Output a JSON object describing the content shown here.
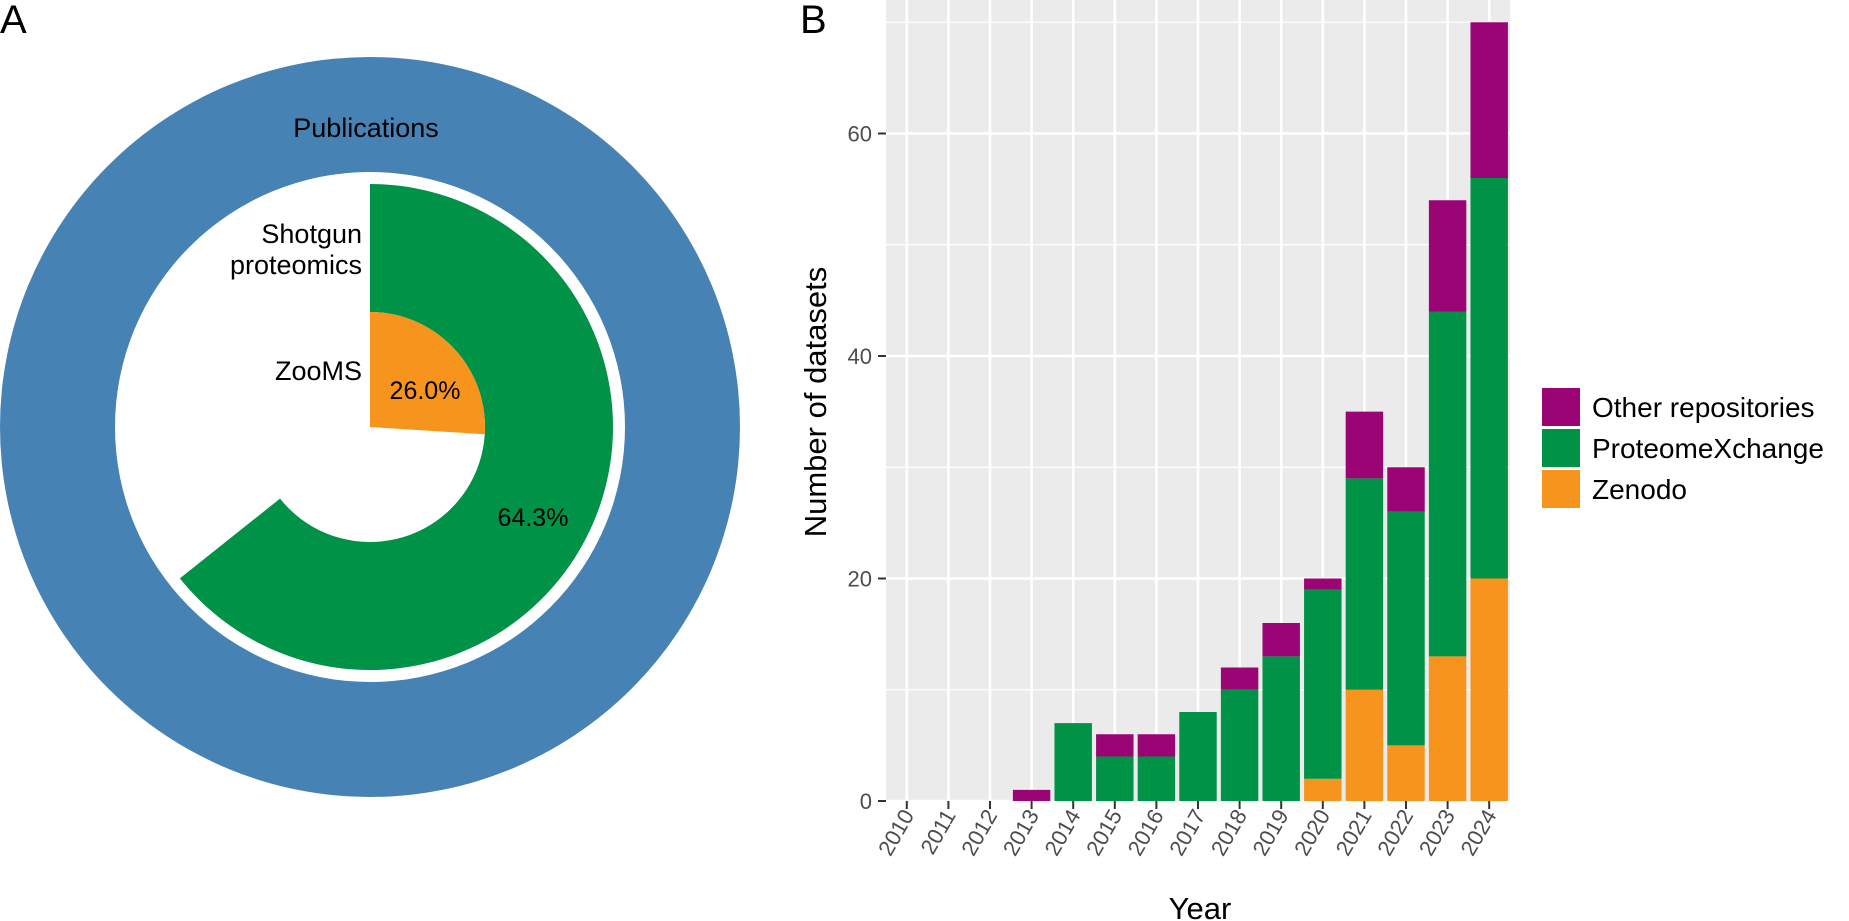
{
  "panel_a": {
    "label": "A"
  },
  "panel_b": {
    "label": "B"
  },
  "chart_data": [
    {
      "type": "pie",
      "title": "",
      "rings": [
        {
          "name": "Publications",
          "label": "Publications",
          "share": 1.0,
          "color": "#4682B4"
        },
        {
          "name": "Shotgun proteomics",
          "label_lines": [
            "Shotgun",
            "proteomics"
          ],
          "share": 0.643,
          "value_label": "64.3%",
          "color": "#009246"
        },
        {
          "name": "ZooMS",
          "label": "ZooMS",
          "share": 0.26,
          "value_label": "26.0%",
          "color": "#F7941D"
        }
      ]
    },
    {
      "type": "bar",
      "stacked": true,
      "title": "",
      "xlabel": "Year",
      "ylabel": "Number of datasets",
      "ylim": [
        0,
        72
      ],
      "y_ticks": [
        0,
        20,
        40,
        60
      ],
      "grid": true,
      "legend_position": "right",
      "categories": [
        "2010",
        "2011",
        "2012",
        "2013",
        "2014",
        "2015",
        "2016",
        "2017",
        "2018",
        "2019",
        "2020",
        "2021",
        "2022",
        "2023",
        "2024"
      ],
      "series": [
        {
          "name": "Zenodo",
          "color": "#F7941D",
          "values": [
            0,
            0,
            0,
            0,
            0,
            0,
            0,
            0,
            0,
            0,
            2,
            10,
            5,
            13,
            20
          ]
        },
        {
          "name": "ProteomeXchange",
          "color": "#009246",
          "values": [
            0,
            0,
            0,
            0,
            7,
            4,
            4,
            8,
            10,
            13,
            17,
            19,
            21,
            31,
            36
          ]
        },
        {
          "name": "Other repositories",
          "color": "#9B0474",
          "values": [
            0,
            0,
            0,
            1,
            0,
            2,
            2,
            0,
            2,
            3,
            1,
            6,
            4,
            10,
            14
          ]
        }
      ],
      "legend_order": [
        "Other repositories",
        "ProteomeXchange",
        "Zenodo"
      ]
    }
  ]
}
